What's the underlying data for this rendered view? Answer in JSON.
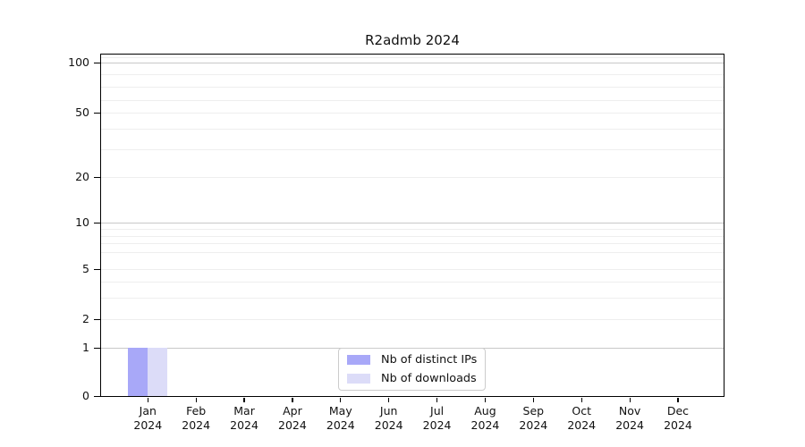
{
  "chart_data": {
    "type": "bar",
    "title": "R2admb 2024",
    "categories": [
      "Jan",
      "Feb",
      "Mar",
      "Apr",
      "May",
      "Jun",
      "Jul",
      "Aug",
      "Sep",
      "Oct",
      "Nov",
      "Dec"
    ],
    "x_axis": {
      "year": "2024"
    },
    "y_axis": {
      "scale": "log-like",
      "ticks": [
        100,
        50,
        20,
        10,
        5,
        2,
        1,
        0
      ],
      "major_values": [
        100,
        10,
        1
      ],
      "ylim": [
        0,
        118
      ]
    },
    "grid": true,
    "legend_position": "lower-center-inside",
    "series": [
      {
        "key": "distinct-ips",
        "name": "Nb of distinct IPs",
        "color": "#a8a8f8",
        "values": [
          1,
          0,
          0,
          0,
          0,
          0,
          0,
          0,
          0,
          0,
          0,
          0
        ]
      },
      {
        "key": "downloads",
        "name": "Nb of downloads",
        "color": "#dcdcf8",
        "values": [
          1,
          0,
          0,
          0,
          0,
          0,
          0,
          0,
          0,
          0,
          0,
          0
        ]
      }
    ]
  },
  "colors": {
    "major_grid": "#c8c8c8",
    "minor_grid": "#eeeeee",
    "spine": "#000000",
    "text": "#111111",
    "background": "#ffffff"
  }
}
